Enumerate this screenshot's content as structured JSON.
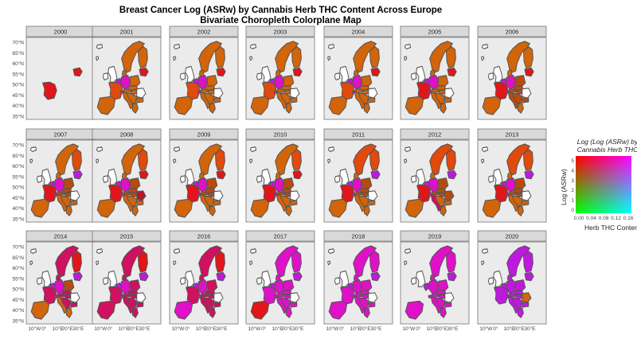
{
  "title": "Breast Cancer Log (ASRw) by Cannabis Herb THC Content Across Europe",
  "subtitle": "Bivariate Choropleth Colorplane Map",
  "chart_data": {
    "type": "bivariate-choropleth-facets",
    "title": "Breast Cancer Log (ASRw) by Cannabis Herb THC Content Across Europe",
    "subtitle": "Bivariate Choropleth Colorplane Map",
    "facets": [
      "2000",
      "2001",
      "2002",
      "2003",
      "2004",
      "2005",
      "2006",
      "2007",
      "2008",
      "2009",
      "2010",
      "2011",
      "2012",
      "2013",
      "2014",
      "2015",
      "2016",
      "2017",
      "2018",
      "2019",
      "2020"
    ],
    "y_ticks": [
      "70°N",
      "65°N",
      "60°N",
      "55°N",
      "50°N",
      "45°N",
      "40°N",
      "35°N"
    ],
    "x_ticks": [
      "10°W",
      "0°",
      "10°E",
      "20°E",
      "30°E"
    ],
    "legend": {
      "title": "Log (Log (ASRw) by Cannabis Herb THC",
      "xlabel": "Herb THC Content",
      "ylabel": "Log (ASRw)",
      "x_ticks": [
        "0.00",
        "0.04",
        "0.08",
        "0.12",
        "0.16"
      ],
      "y_ticks": [
        "5",
        "4",
        "3",
        "2",
        "1",
        "0"
      ],
      "corner_colors": {
        "top_left": "#ff0000",
        "top_right": "#ff00ff",
        "bottom_left": "#00ff00",
        "bottom_right": "#00ffff"
      }
    },
    "colors": {
      "orange": "#d2640a",
      "red_orange": "#e04a0c",
      "red": "#e0161a",
      "dark_red": "#b01a2a",
      "crimson": "#d01060",
      "magenta": "#e010c8",
      "violet": "#c018e0",
      "purple": "#9a1ae6",
      "brown": "#b84a10",
      "white": "#ffffff",
      "panel_bg": "#ebebeb",
      "strip_bg": "#d9d9d9"
    },
    "year_palettes": {
      "2000": {
        "iberia": null,
        "france": "#e0161a",
        "benelux": null,
        "uk": null,
        "ireland": null,
        "germany": null,
        "switz": null,
        "italy": null,
        "poland": null,
        "czsk": null,
        "austria": null,
        "hungary": null,
        "balkans": null,
        "romania": null,
        "bulgaria": null,
        "greece": null,
        "scandinavia": null,
        "finland": null,
        "baltics": "#e0161a",
        "denmark": null,
        "iceland": null
      },
      "2001": {
        "iberia": "#d2640a",
        "france": "#e04a0c",
        "benelux": "#c018e0",
        "uk": "#ffffff",
        "ireland": "#ffffff",
        "germany": "#e010c8",
        "switz": "#e010c8",
        "italy": "#d2640a",
        "poland": "#d2640a",
        "czsk": "#d2640a",
        "austria": "#d2640a",
        "hungary": "#d2640a",
        "balkans": "#d2640a",
        "romania": "#ffffff",
        "bulgaria": "#d2640a",
        "greece": "#d2640a",
        "scandinavia": "#d2640a",
        "finland": "#d2640a",
        "baltics": "#e0161a",
        "denmark": "#d2640a",
        "iceland": "#ffffff"
      },
      "2002": {
        "iberia": "#d2640a",
        "france": "#e04a0c",
        "benelux": "#c018e0",
        "uk": "#ffffff",
        "ireland": "#ffffff",
        "germany": "#e010c8",
        "switz": "#e010c8",
        "italy": "#d2640a",
        "poland": "#d2640a",
        "czsk": "#d2640a",
        "austria": "#d2640a",
        "hungary": "#d2640a",
        "balkans": "#d2640a",
        "romania": "#ffffff",
        "bulgaria": "#d2640a",
        "greece": "#d2640a",
        "scandinavia": "#d2640a",
        "finland": "#d2640a",
        "baltics": "#e0161a",
        "denmark": "#d2640a",
        "iceland": "#ffffff"
      },
      "2003": {
        "iberia": "#d2640a",
        "france": "#e04a0c",
        "benelux": "#c018e0",
        "uk": "#ffffff",
        "ireland": "#ffffff",
        "germany": "#e010c8",
        "switz": "#e010c8",
        "italy": "#d2640a",
        "poland": "#d2640a",
        "czsk": "#d2640a",
        "austria": "#d2640a",
        "hungary": "#d2640a",
        "balkans": "#d2640a",
        "romania": "#ffffff",
        "bulgaria": "#d2640a",
        "greece": "#d2640a",
        "scandinavia": "#d2640a",
        "finland": "#d2640a",
        "baltics": "#e0161a",
        "denmark": "#d2640a",
        "iceland": "#ffffff"
      },
      "2004": {
        "iberia": "#d2640a",
        "france": "#e04a0c",
        "benelux": "#c018e0",
        "uk": "#ffffff",
        "ireland": "#ffffff",
        "germany": "#e010c8",
        "switz": "#e010c8",
        "italy": "#d2640a",
        "poland": "#d2640a",
        "czsk": "#d2640a",
        "austria": "#d2640a",
        "hungary": "#d2640a",
        "balkans": "#d2640a",
        "romania": "#ffffff",
        "bulgaria": "#d2640a",
        "greece": "#d2640a",
        "scandinavia": "#d2640a",
        "finland": "#d2640a",
        "baltics": "#e0161a",
        "denmark": "#d2640a",
        "iceland": "#ffffff"
      },
      "2005": {
        "iberia": "#d2640a",
        "france": "#e0161a",
        "benelux": "#c018e0",
        "uk": "#ffffff",
        "ireland": "#ffffff",
        "germany": "#e010c8",
        "switz": "#e010c8",
        "italy": "#d2640a",
        "poland": "#d2640a",
        "czsk": "#d2640a",
        "austria": "#d2640a",
        "hungary": "#d2640a",
        "balkans": "#d2640a",
        "romania": "#ffffff",
        "bulgaria": "#d2640a",
        "greece": "#d2640a",
        "scandinavia": "#d2640a",
        "finland": "#d2640a",
        "baltics": "#e0161a",
        "denmark": "#d2640a",
        "iceland": "#ffffff"
      },
      "2006": {
        "iberia": "#d2640a",
        "france": "#e0161a",
        "benelux": "#c018e0",
        "uk": "#ffffff",
        "ireland": "#ffffff",
        "germany": "#e010c8",
        "switz": "#e010c8",
        "italy": "#b84a10",
        "poland": "#b84a10",
        "czsk": "#b84a10",
        "austria": "#b84a10",
        "hungary": "#b84a10",
        "balkans": "#b84a10",
        "romania": "#ffffff",
        "bulgaria": "#b84a10",
        "greece": "#d2640a",
        "scandinavia": "#d2640a",
        "finland": "#d2640a",
        "baltics": "#e0161a",
        "denmark": "#d2640a",
        "iceland": "#ffffff"
      },
      "2007": {
        "iberia": "#d2640a",
        "france": "#e0161a",
        "benelux": "#c018e0",
        "uk": "#ffffff",
        "ireland": "#ffffff",
        "germany": "#e010c8",
        "switz": "#e010c8",
        "italy": "#d2640a",
        "poland": "#b84a10",
        "czsk": "#b84a10",
        "austria": "#b84a10",
        "hungary": "#b84a10",
        "balkans": "#d2640a",
        "romania": "#ffffff",
        "bulgaria": "#d2640a",
        "greece": "#d2640a",
        "scandinavia": "#d2640a",
        "finland": "#e04a0c",
        "baltics": "#c018e0",
        "denmark": "#d2640a",
        "iceland": "#ffffff"
      },
      "2008": {
        "iberia": "#d2640a",
        "france": "#e0161a",
        "benelux": "#c018e0",
        "uk": "#ffffff",
        "ireland": "#ffffff",
        "germany": "#e010c8",
        "switz": "#e010c8",
        "italy": "#d2640a",
        "poland": "#b84a10",
        "czsk": "#b84a10",
        "austria": "#b84a10",
        "hungary": "#b84a10",
        "balkans": "#d2640a",
        "romania": "#b01a2a",
        "bulgaria": "#d2640a",
        "greece": "#d2640a",
        "scandinavia": "#d2640a",
        "finland": "#e04a0c",
        "baltics": "#e0161a",
        "denmark": "#d2640a",
        "iceland": "#ffffff"
      },
      "2009": {
        "iberia": "#d2640a",
        "france": "#e0161a",
        "benelux": "#c018e0",
        "uk": "#ffffff",
        "ireland": "#ffffff",
        "germany": "#e010c8",
        "switz": "#e010c8",
        "italy": "#d2640a",
        "poland": "#b84a10",
        "czsk": "#b84a10",
        "austria": "#b84a10",
        "hungary": "#b84a10",
        "balkans": "#d2640a",
        "romania": "#ffffff",
        "bulgaria": "#d2640a",
        "greece": "#d2640a",
        "scandinavia": "#d2640a",
        "finland": "#e04a0c",
        "baltics": "#e0161a",
        "denmark": "#d2640a",
        "iceland": "#ffffff"
      },
      "2010": {
        "iberia": "#d2640a",
        "france": "#e0161a",
        "benelux": "#c018e0",
        "uk": "#ffffff",
        "ireland": "#ffffff",
        "germany": "#e010c8",
        "switz": "#e010c8",
        "italy": "#d2640a",
        "poland": "#b84a10",
        "czsk": "#b84a10",
        "austria": "#b84a10",
        "hungary": "#b84a10",
        "balkans": "#d2640a",
        "romania": "#ffffff",
        "bulgaria": "#d2640a",
        "greece": "#d2640a",
        "scandinavia": "#d2640a",
        "finland": "#e04a0c",
        "baltics": "#e0161a",
        "denmark": "#d2640a",
        "iceland": "#ffffff"
      },
      "2011": {
        "iberia": "#d2640a",
        "france": "#e0161a",
        "benelux": "#c018e0",
        "uk": "#ffffff",
        "ireland": "#ffffff",
        "germany": "#e010c8",
        "switz": "#e010c8",
        "italy": "#d2640a",
        "poland": "#b84a10",
        "czsk": "#b84a10",
        "austria": "#b84a10",
        "hungary": "#b84a10",
        "balkans": "#d2640a",
        "romania": "#ffffff",
        "bulgaria": "#d2640a",
        "greece": "#d2640a",
        "scandinavia": "#e04a0c",
        "finland": "#e04a0c",
        "baltics": "#c018e0",
        "denmark": "#d2640a",
        "iceland": "#ffffff"
      },
      "2012": {
        "iberia": "#d2640a",
        "france": "#e0161a",
        "benelux": "#c018e0",
        "uk": "#ffffff",
        "ireland": "#ffffff",
        "germany": "#e010c8",
        "switz": "#e010c8",
        "italy": "#d01060",
        "poland": "#b84a10",
        "czsk": "#b84a10",
        "austria": "#b84a10",
        "hungary": "#b84a10",
        "balkans": "#d2640a",
        "romania": "#b84a10",
        "bulgaria": "#d2640a",
        "greece": "#d2640a",
        "scandinavia": "#e04a0c",
        "finland": "#e04a0c",
        "baltics": "#c018e0",
        "denmark": "#d2640a",
        "iceland": "#ffffff"
      },
      "2013": {
        "iberia": "#d2640a",
        "france": "#e0161a",
        "benelux": "#c018e0",
        "uk": "#ffffff",
        "ireland": "#ffffff",
        "germany": "#e010c8",
        "switz": "#e010c8",
        "italy": "#d2640a",
        "poland": "#b84a10",
        "czsk": "#b84a10",
        "austria": "#b84a10",
        "hungary": "#b84a10",
        "balkans": "#d2640a",
        "romania": "#ffffff",
        "bulgaria": "#d2640a",
        "greece": "#d2640a",
        "scandinavia": "#e04a0c",
        "finland": "#e04a0c",
        "baltics": "#c018e0",
        "denmark": "#d2640a",
        "iceland": "#ffffff"
      },
      "2014": {
        "iberia": "#d2640a",
        "france": "#d01060",
        "benelux": "#c018e0",
        "uk": "#ffffff",
        "ireland": "#ffffff",
        "germany": "#e010c8",
        "switz": "#e010c8",
        "italy": "#d2640a",
        "poland": "#b84a10",
        "czsk": "#d01060",
        "austria": "#d01060",
        "hungary": "#d01060",
        "balkans": "#d01060",
        "romania": "#ffffff",
        "bulgaria": "#d01060",
        "greece": "#d2640a",
        "scandinavia": "#d01060",
        "finland": "#e0161a",
        "baltics": "#c018e0",
        "denmark": "#d01060",
        "iceland": "#ffffff"
      },
      "2015": {
        "iberia": "#d01060",
        "france": "#d01060",
        "benelux": "#c018e0",
        "uk": "#ffffff",
        "ireland": "#ffffff",
        "germany": "#e010c8",
        "switz": "#e010c8",
        "italy": "#d01060",
        "poland": "#d01060",
        "czsk": "#d01060",
        "austria": "#d01060",
        "hungary": "#d01060",
        "balkans": "#d01060",
        "romania": "#ffffff",
        "bulgaria": "#d01060",
        "greece": "#d01060",
        "scandinavia": "#d01060",
        "finland": "#e0161a",
        "baltics": "#c018e0",
        "denmark": "#d01060",
        "iceland": "#ffffff"
      },
      "2016": {
        "iberia": "#e010c8",
        "france": "#d01060",
        "benelux": "#c018e0",
        "uk": "#ffffff",
        "ireland": "#ffffff",
        "germany": "#e010c8",
        "switz": "#e010c8",
        "italy": "#d01060",
        "poland": "#d01060",
        "czsk": "#d01060",
        "austria": "#d01060",
        "hungary": "#d01060",
        "balkans": "#d01060",
        "romania": "#ffffff",
        "bulgaria": "#d01060",
        "greece": "#d01060",
        "scandinavia": "#d01060",
        "finland": "#e0161a",
        "baltics": "#c018e0",
        "denmark": "#d01060",
        "iceland": "#ffffff"
      },
      "2017": {
        "iberia": "#e0161a",
        "france": "#e010c8",
        "benelux": "#c018e0",
        "uk": "#ffffff",
        "ireland": "#ffffff",
        "germany": "#e010c8",
        "switz": "#e010c8",
        "italy": "#e010c8",
        "poland": "#e010c8",
        "czsk": "#e010c8",
        "austria": "#e010c8",
        "hungary": "#e010c8",
        "balkans": "#e010c8",
        "romania": "#ffffff",
        "bulgaria": "#e010c8",
        "greece": "#e010c8",
        "scandinavia": "#e010c8",
        "finland": "#e010c8",
        "baltics": "#c018e0",
        "denmark": "#e010c8",
        "iceland": "#ffffff"
      },
      "2018": {
        "iberia": "#e010c8",
        "france": "#e010c8",
        "benelux": "#c018e0",
        "uk": "#ffffff",
        "ireland": "#ffffff",
        "germany": "#e010c8",
        "switz": "#e010c8",
        "italy": "#e010c8",
        "poland": "#e010c8",
        "czsk": "#e010c8",
        "austria": "#e010c8",
        "hungary": "#e010c8",
        "balkans": "#e010c8",
        "romania": "#ffffff",
        "bulgaria": "#e010c8",
        "greece": "#e010c8",
        "scandinavia": "#e010c8",
        "finland": "#e010c8",
        "baltics": "#c018e0",
        "denmark": "#e010c8",
        "iceland": "#ffffff"
      },
      "2019": {
        "iberia": "#e010c8",
        "france": null,
        "benelux": "#c018e0",
        "uk": "#ffffff",
        "ireland": "#ffffff",
        "germany": "#e010c8",
        "switz": "#e010c8",
        "italy": "#e010c8",
        "poland": "#e010c8",
        "czsk": "#e010c8",
        "austria": "#e010c8",
        "hungary": "#e010c8",
        "balkans": "#e010c8",
        "romania": "#ffffff",
        "bulgaria": "#e010c8",
        "greece": "#e010c8",
        "scandinavia": "#e010c8",
        "finland": "#e010c8",
        "baltics": "#c018e0",
        "denmark": "#e010c8",
        "iceland": "#ffffff"
      },
      "2020": {
        "iberia": null,
        "france": "#c018e0",
        "benelux": "#c018e0",
        "uk": "#ffffff",
        "ireland": "#ffffff",
        "germany": "#c018e0",
        "switz": "#c018e0",
        "italy": "#c018e0",
        "poland": "#c018e0",
        "czsk": "#c018e0",
        "austria": "#c018e0",
        "hungary": "#c018e0",
        "balkans": "#c018e0",
        "romania": "#d2640a",
        "bulgaria": "#c018e0",
        "greece": "#c018e0",
        "scandinavia": "#c018e0",
        "finland": "#c018e0",
        "baltics": "#c018e0",
        "denmark": "#c018e0",
        "iceland": "#ffffff"
      }
    }
  }
}
